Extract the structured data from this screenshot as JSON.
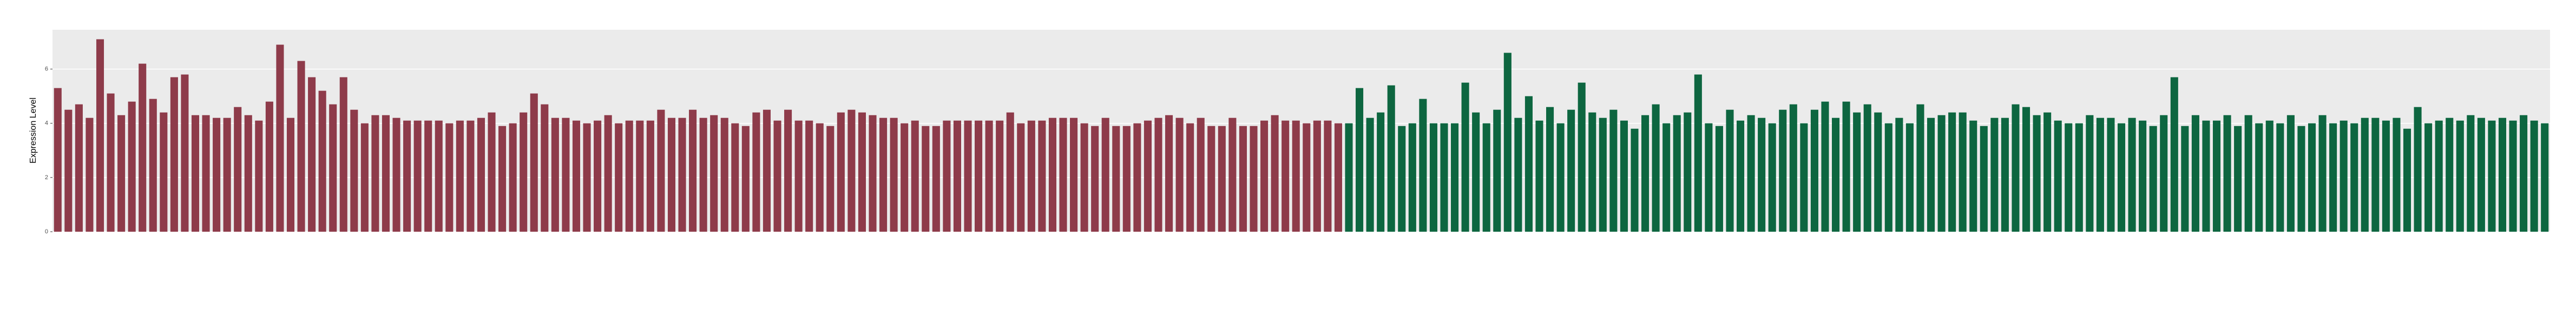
{
  "chart_data": {
    "type": "bar",
    "y_label": "Expression Level",
    "ylim": [
      0,
      7.45
    ],
    "yticks": [
      0,
      2,
      4,
      6
    ],
    "grid": true,
    "series": [
      {
        "color": "#8e3b4a",
        "categories": [
          null,
          null,
          null,
          null,
          null,
          null,
          null,
          null,
          null,
          null,
          null,
          null,
          null,
          null,
          null,
          null,
          null,
          null,
          null,
          null,
          null,
          null,
          null,
          null,
          null,
          null,
          null,
          null,
          null,
          null,
          null,
          null,
          null,
          null,
          null,
          null,
          null,
          null,
          null,
          null,
          null,
          null,
          null,
          null,
          null,
          null,
          null,
          null,
          null,
          null,
          null,
          null,
          null,
          null,
          null,
          null,
          null,
          null,
          null,
          null,
          null,
          null,
          null,
          null,
          null,
          null,
          null,
          null,
          null,
          null,
          null,
          null,
          null,
          null,
          null,
          null,
          null,
          null,
          null,
          null,
          null,
          null,
          null,
          null,
          null,
          null,
          null,
          null,
          null,
          null,
          null,
          null,
          null,
          null,
          null,
          null,
          null,
          null,
          null,
          null,
          null,
          null,
          null,
          null,
          null,
          null,
          null,
          null,
          null,
          null,
          null,
          null,
          null,
          null,
          null,
          null,
          null,
          null,
          null,
          null,
          null,
          null
        ],
        "values": [
          5.3,
          4.5,
          4.7,
          4.2,
          7.1,
          5.1,
          4.3,
          4.8,
          6.2,
          4.9,
          4.4,
          5.7,
          5.8,
          4.3,
          4.3,
          4.2,
          4.2,
          4.6,
          4.3,
          4.1,
          4.8,
          6.9,
          4.2,
          6.3,
          5.7,
          5.2,
          4.7,
          5.7,
          4.5,
          4.0,
          4.3,
          4.3,
          4.2,
          4.1,
          4.1,
          4.1,
          4.1,
          4.0,
          4.1,
          4.1,
          4.2,
          4.4,
          3.9,
          4.0,
          4.4,
          5.1,
          4.7,
          4.2,
          4.2,
          4.1,
          4.0,
          4.1,
          4.3,
          4.0,
          4.1,
          4.1,
          4.1,
          4.5,
          4.2,
          4.2,
          4.5,
          4.2,
          4.3,
          4.2,
          4.0,
          3.9,
          4.4,
          4.5,
          4.1,
          4.5,
          4.1,
          4.1,
          4.0,
          3.9,
          4.4,
          4.5,
          4.4,
          4.3,
          4.2,
          4.2,
          4.0,
          4.1,
          3.9,
          3.9,
          4.1,
          4.1,
          4.1,
          4.1,
          4.1,
          4.1,
          4.4,
          4.0,
          4.1,
          4.1,
          4.2,
          4.2,
          4.2,
          4.0,
          3.9,
          4.2,
          3.9,
          3.9,
          4.0,
          4.1,
          4.2,
          4.3,
          4.2,
          4.0,
          4.2,
          3.9,
          3.9,
          4.2,
          3.9,
          3.9,
          4.1,
          4.3,
          4.1,
          4.1,
          4.0,
          4.1,
          4.1,
          4.0
        ]
      },
      {
        "color": "#0d6640",
        "categories": [
          null,
          null,
          null,
          null,
          null,
          null,
          null,
          null,
          null,
          null,
          null,
          null,
          null,
          null,
          null,
          null,
          null,
          null,
          null,
          null,
          null,
          null,
          null,
          null,
          null,
          null,
          null,
          null,
          null,
          null,
          null,
          null,
          null,
          null,
          null,
          null,
          null,
          null,
          null,
          null,
          null,
          null,
          null,
          null,
          null,
          null,
          null,
          null,
          null,
          null,
          null,
          null,
          null,
          null,
          null,
          null,
          null,
          null,
          null,
          null,
          null,
          null,
          null,
          null,
          null,
          null,
          null,
          null,
          null,
          null,
          null,
          null,
          null,
          null,
          null,
          null,
          null,
          null,
          null,
          null,
          null,
          null,
          null,
          null,
          null,
          null,
          null,
          null,
          null,
          null,
          null,
          null,
          null,
          null,
          null,
          null,
          null,
          null,
          null,
          null,
          null,
          null,
          null,
          null,
          null,
          null,
          null,
          null,
          null,
          null,
          null,
          null,
          null,
          null
        ],
        "values": [
          4.0,
          5.3,
          4.2,
          4.4,
          5.4,
          3.9,
          4.0,
          4.9,
          4.0,
          4.0,
          4.0,
          5.5,
          4.4,
          4.0,
          4.5,
          6.6,
          4.2,
          5.0,
          4.1,
          4.6,
          4.0,
          4.5,
          5.5,
          4.4,
          4.2,
          4.5,
          4.1,
          3.8,
          4.3,
          4.7,
          4.0,
          4.3,
          4.4,
          5.8,
          4.0,
          3.9,
          4.5,
          4.1,
          4.3,
          4.2,
          4.0,
          4.5,
          4.7,
          4.0,
          4.5,
          4.8,
          4.2,
          4.8,
          4.4,
          4.7,
          4.4,
          4.0,
          4.2,
          4.0,
          4.7,
          4.2,
          4.3,
          4.4,
          4.4,
          4.1,
          3.9,
          4.2,
          4.2,
          4.7,
          4.6,
          4.3,
          4.4,
          4.1,
          4.0,
          4.0,
          4.3,
          4.2,
          4.2,
          4.0,
          4.2,
          4.1,
          3.9,
          4.3,
          5.7,
          3.9,
          4.3,
          4.1,
          4.1,
          4.3,
          3.9,
          4.3,
          4.0,
          4.1,
          4.0,
          4.3,
          3.9,
          4.0,
          4.3,
          4.0,
          4.1,
          4.0,
          4.2,
          4.2,
          4.1,
          4.2,
          3.8,
          4.6,
          4.0,
          4.1,
          4.2,
          4.1,
          4.3,
          4.2,
          4.1,
          4.2,
          4.1,
          4.3,
          4.1,
          4.0
        ]
      }
    ]
  }
}
